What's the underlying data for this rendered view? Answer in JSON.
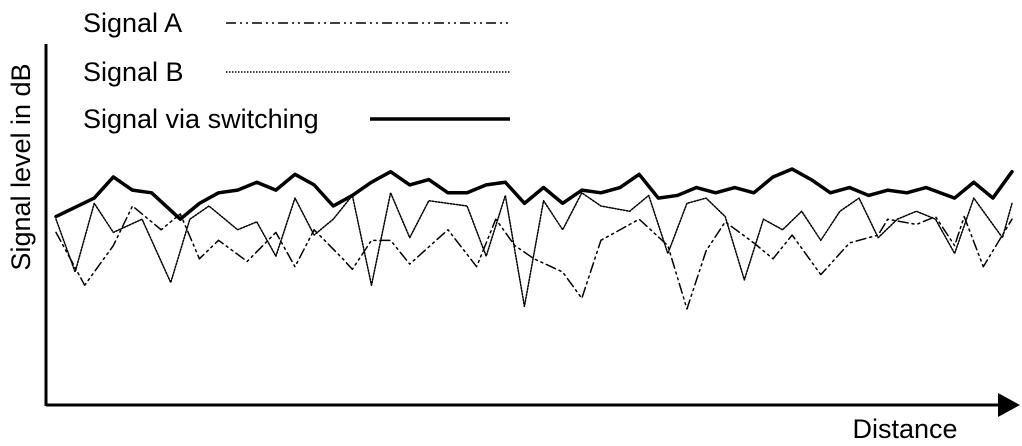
{
  "chart_data": {
    "type": "line",
    "title": "",
    "xlabel": "Distance",
    "ylabel": "Signal level in dB",
    "axes": {
      "x_ticks": false,
      "y_ticks": false,
      "x_arrow": true,
      "grid": false
    },
    "legend": {
      "placement": "top-left",
      "entries": [
        {
          "name": "Signal A",
          "style": "dash-dot-dot",
          "color": "#000000",
          "weight": "thin"
        },
        {
          "name": "Signal B",
          "style": "dotted",
          "color": "#000000",
          "weight": "thin"
        },
        {
          "name": "Signal via switching",
          "style": "solid",
          "color": "#000000",
          "weight": "thick"
        }
      ]
    },
    "x_range": [
      0,
      100
    ],
    "y_range": [
      0,
      100
    ],
    "series": [
      {
        "name": "Signal A",
        "values": [
          [
            0,
            65
          ],
          [
            3,
            45
          ],
          [
            6,
            60
          ],
          [
            8,
            75
          ],
          [
            11,
            66
          ],
          [
            13,
            72
          ],
          [
            15,
            55
          ],
          [
            17,
            62
          ],
          [
            20,
            54
          ],
          [
            23,
            65
          ],
          [
            25,
            52
          ],
          [
            27,
            66
          ],
          [
            30,
            55
          ],
          [
            31,
            51
          ],
          [
            33,
            62
          ],
          [
            35,
            62
          ],
          [
            37,
            53
          ],
          [
            41,
            66
          ],
          [
            44,
            52
          ],
          [
            46,
            70
          ],
          [
            48,
            60
          ],
          [
            50,
            55
          ],
          [
            53,
            50
          ],
          [
            55,
            40
          ],
          [
            57,
            62
          ],
          [
            61,
            70
          ],
          [
            64,
            60
          ],
          [
            66,
            36
          ],
          [
            68,
            58
          ],
          [
            70,
            69
          ],
          [
            73,
            61
          ],
          [
            75,
            55
          ],
          [
            77,
            64
          ],
          [
            80,
            49
          ],
          [
            83,
            61
          ],
          [
            86,
            64
          ],
          [
            87,
            70
          ],
          [
            90,
            68
          ],
          [
            92,
            71
          ],
          [
            94,
            60
          ],
          [
            95,
            71
          ],
          [
            97,
            52
          ],
          [
            99,
            64
          ],
          [
            100,
            70
          ]
        ]
      },
      {
        "name": "Signal B",
        "values": [
          [
            0,
            70
          ],
          [
            2,
            50
          ],
          [
            4,
            76
          ],
          [
            6,
            65
          ],
          [
            9,
            70
          ],
          [
            12,
            46
          ],
          [
            14,
            70
          ],
          [
            16,
            75
          ],
          [
            19,
            66
          ],
          [
            21,
            69
          ],
          [
            23,
            56
          ],
          [
            25,
            78
          ],
          [
            27,
            64
          ],
          [
            29,
            70
          ],
          [
            31,
            79
          ],
          [
            33,
            45
          ],
          [
            35,
            80
          ],
          [
            37,
            63
          ],
          [
            39,
            77
          ],
          [
            43,
            75
          ],
          [
            45,
            56
          ],
          [
            47,
            79
          ],
          [
            49,
            37
          ],
          [
            51,
            77
          ],
          [
            53,
            66
          ],
          [
            55,
            80
          ],
          [
            57,
            75
          ],
          [
            60,
            73
          ],
          [
            62,
            79
          ],
          [
            64,
            57
          ],
          [
            66,
            76
          ],
          [
            68,
            78
          ],
          [
            70,
            71
          ],
          [
            72,
            47
          ],
          [
            74,
            70
          ],
          [
            76,
            66
          ],
          [
            78,
            73
          ],
          [
            80,
            62
          ],
          [
            82,
            73
          ],
          [
            84,
            78
          ],
          [
            86,
            63
          ],
          [
            88,
            70
          ],
          [
            90,
            73
          ],
          [
            92,
            70
          ],
          [
            94,
            57
          ],
          [
            96,
            78
          ],
          [
            99,
            63
          ],
          [
            100,
            76
          ]
        ]
      },
      {
        "name": "Signal via switching",
        "values": [
          [
            0,
            71
          ],
          [
            4,
            78
          ],
          [
            6,
            86
          ],
          [
            8,
            81
          ],
          [
            10,
            80
          ],
          [
            13,
            70
          ],
          [
            15,
            76
          ],
          [
            17,
            80
          ],
          [
            19,
            81
          ],
          [
            21,
            84
          ],
          [
            23,
            81
          ],
          [
            25,
            87
          ],
          [
            27,
            83
          ],
          [
            29,
            75
          ],
          [
            31,
            79
          ],
          [
            33,
            84
          ],
          [
            35,
            88
          ],
          [
            37,
            83
          ],
          [
            39,
            85
          ],
          [
            41,
            80
          ],
          [
            43,
            80
          ],
          [
            45,
            83
          ],
          [
            47,
            84
          ],
          [
            49,
            76
          ],
          [
            51,
            82
          ],
          [
            53,
            76
          ],
          [
            55,
            81
          ],
          [
            57,
            80
          ],
          [
            59,
            82
          ],
          [
            61,
            87
          ],
          [
            63,
            78
          ],
          [
            65,
            79
          ],
          [
            67,
            82
          ],
          [
            69,
            80
          ],
          [
            71,
            82
          ],
          [
            73,
            80
          ],
          [
            75,
            86
          ],
          [
            77,
            89
          ],
          [
            79,
            85
          ],
          [
            81,
            80
          ],
          [
            83,
            82
          ],
          [
            85,
            79
          ],
          [
            87,
            81
          ],
          [
            89,
            80
          ],
          [
            91,
            82
          ],
          [
            94,
            78
          ],
          [
            96,
            84
          ],
          [
            98,
            78
          ],
          [
            100,
            88
          ]
        ]
      }
    ]
  }
}
